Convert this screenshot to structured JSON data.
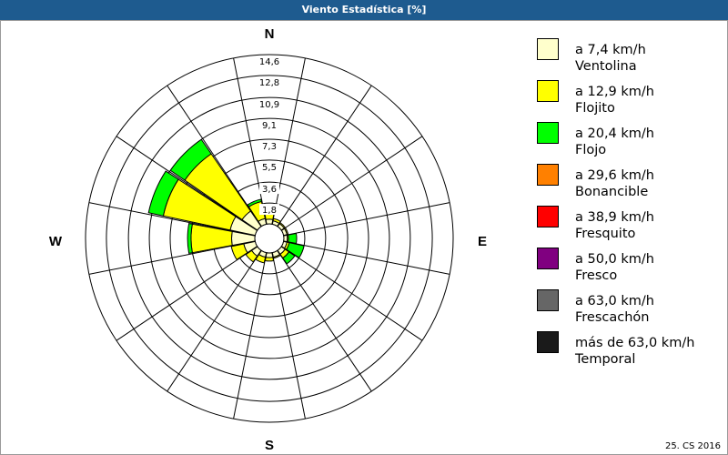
{
  "window": {
    "title": "Viento Estadística [%]"
  },
  "chart_data": {
    "type": "wind-rose",
    "title": "Viento Estadística [%]",
    "directions": [
      "N",
      "NNE",
      "NE",
      "ENE",
      "E",
      "ESE",
      "SE",
      "SSE",
      "S",
      "SSW",
      "SW",
      "WSW",
      "W",
      "WNW",
      "NW",
      "NNW"
    ],
    "compass_labels": {
      "N": "N",
      "E": "E",
      "S": "S",
      "W": "W"
    },
    "radial_ticks": [
      "1,8",
      "3,6",
      "5,5",
      "7,3",
      "9,1",
      "10,9",
      "12,8",
      "14,6"
    ],
    "radial_tick_values": [
      1.8,
      3.6,
      5.5,
      7.3,
      9.1,
      10.9,
      12.8,
      14.6
    ],
    "rmax": 14.6,
    "series": [
      {
        "name": "Ventolina",
        "legend_top": "a 7,4 km/h",
        "color": "#ffffcc",
        "values": [
          0.4,
          0.3,
          0.3,
          0.3,
          0.3,
          0.3,
          0.4,
          0.4,
          0.4,
          0.4,
          0.6,
          1.0,
          2.0,
          2.2,
          1.6,
          0.5
        ]
      },
      {
        "name": "Flojito",
        "legend_top": "a 12,9 km/h",
        "color": "#ffff00",
        "values": [
          0.6,
          0.2,
          0.1,
          0.1,
          0.1,
          0.2,
          0.4,
          0.1,
          0.3,
          0.5,
          0.6,
          1.1,
          3.5,
          5.9,
          6.0,
          1.5
        ]
      },
      {
        "name": "Flojo",
        "legend_top": "a 20,4 km/h",
        "color": "#00ff00",
        "values": [
          0.1,
          0.0,
          0.0,
          0.0,
          0.7,
          1.3,
          0.6,
          0.0,
          0.0,
          0.0,
          0.0,
          0.0,
          0.3,
          1.3,
          1.5,
          0.2
        ]
      },
      {
        "name": "Bonancible",
        "legend_top": "a 29,6 km/h",
        "color": "#ff8000",
        "values": [
          0,
          0,
          0,
          0,
          0,
          0,
          0,
          0,
          0,
          0,
          0,
          0,
          0,
          0,
          0,
          0
        ]
      },
      {
        "name": "Fresquito",
        "legend_top": "a 38,9 km/h",
        "color": "#ff0000",
        "values": [
          0,
          0,
          0,
          0,
          0,
          0,
          0,
          0,
          0,
          0,
          0,
          0,
          0,
          0,
          0,
          0
        ]
      },
      {
        "name": "Fresco",
        "legend_top": "a 50,0 km/h",
        "color": "#800080",
        "values": [
          0,
          0,
          0,
          0,
          0,
          0,
          0,
          0,
          0,
          0,
          0,
          0,
          0,
          0,
          0,
          0
        ]
      },
      {
        "name": "Frescachón",
        "legend_top": "a 63,0 km/h",
        "color": "#666666",
        "values": [
          0,
          0,
          0,
          0,
          0,
          0,
          0,
          0,
          0,
          0,
          0,
          0,
          0,
          0,
          0,
          0
        ]
      },
      {
        "name": "Temporal",
        "legend_top": "más de 63,0 km/h",
        "color": "#1a1a1a",
        "values": [
          0,
          0,
          0,
          0,
          0,
          0,
          0,
          0,
          0,
          0,
          0,
          0,
          0,
          0,
          0,
          0
        ]
      }
    ]
  },
  "footer": {
    "text": "25. CS 2016"
  }
}
